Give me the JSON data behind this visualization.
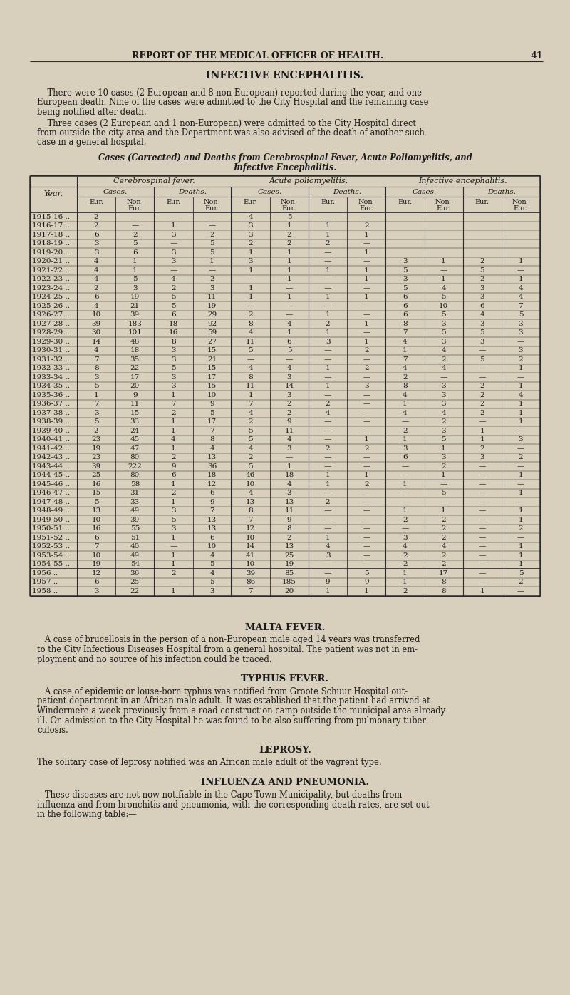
{
  "page_header": "REPORT OF THE MEDICAL OFFICER OF HEALTH.",
  "page_number": "41",
  "section_title": "INFECTIVE ENCEPHALITIS.",
  "para1_indent": "    There were 10 cases (2 European and 8 non-European) reported during the year, and one",
  "para1_line2": "European death. Nine of the cases were admitted to the City Hospital and the remaining case",
  "para1_line3": "being notified after death.",
  "para2_indent": "    Three cases (2 European and 1 non-European) were admitted to the City Hospital direct",
  "para2_line2": "from outside the city area and the Department was also advised of the death of another such",
  "para2_line3": "case in a general hospital.",
  "table_caption_line1": "Cases (Corrected) and Deaths from Cerebrospinal Fever, Acute Poliomyelitis, and",
  "table_caption_line2": "Infective Encephalitis.",
  "rows": [
    [
      "1915-16 ..",
      "2",
      "—",
      "—",
      "—",
      "4",
      "5",
      "—",
      "—",
      "",
      "",
      "",
      ""
    ],
    [
      "1916-17 ..",
      "2",
      "—",
      "1",
      "—",
      "3",
      "1",
      "1",
      "2",
      "",
      "",
      "",
      ""
    ],
    [
      "1917-18 ..",
      "6",
      "2",
      "3",
      "2",
      "3",
      "2",
      "1",
      "1",
      "",
      "",
      "",
      ""
    ],
    [
      "1918-19 ..",
      "3",
      "5",
      "—",
      "5",
      "2",
      "2",
      "2",
      "—",
      "",
      "",
      "",
      ""
    ],
    [
      "1919-20 ..",
      "3",
      "6",
      "3",
      "5",
      "1",
      "1",
      "—",
      "1",
      "",
      "",
      "",
      ""
    ],
    [
      "1920-21 ..",
      "4",
      "1",
      "3",
      "1",
      "3",
      "1",
      "—",
      "—",
      "3",
      "1",
      "2",
      "1"
    ],
    [
      "1921-22 ..",
      "4",
      "1",
      "—",
      "—",
      "1",
      "1",
      "1",
      "1",
      "5",
      "—",
      "5",
      "—"
    ],
    [
      "1922-23 ..",
      "4",
      "5",
      "4",
      "2",
      "—",
      "1",
      "—",
      "1",
      "3",
      "1",
      "2",
      "1"
    ],
    [
      "1923-24 ..",
      "2",
      "3",
      "2",
      "3",
      "1",
      "—",
      "—",
      "—",
      "5",
      "4",
      "3",
      "4"
    ],
    [
      "1924-25 ..",
      "6",
      "19",
      "5",
      "11",
      "1",
      "1",
      "1",
      "1",
      "6",
      "5",
      "3",
      "4"
    ],
    [
      "1925-26 ..",
      "4",
      "21",
      "5",
      "19",
      "—",
      "—",
      "—",
      "—",
      "6",
      "10",
      "6",
      "7"
    ],
    [
      "1926-27 ..",
      "10",
      "39",
      "6",
      "29",
      "2",
      "—",
      "1",
      "—",
      "6",
      "5",
      "4",
      "5"
    ],
    [
      "1927-28 ..",
      "39",
      "183",
      "18",
      "92",
      "8",
      "4",
      "2",
      "1",
      "8",
      "3",
      "3",
      "3"
    ],
    [
      "1928-29 ..",
      "30",
      "101",
      "16",
      "59",
      "4",
      "1",
      "1",
      "—",
      "7",
      "5",
      "5",
      "3"
    ],
    [
      "1929-30 ..",
      "14",
      "48",
      "8",
      "27",
      "11",
      "6",
      "3",
      "1",
      "4",
      "3",
      "3",
      "—"
    ],
    [
      "1930-31 ..",
      "4",
      "18",
      "3",
      "15",
      "5",
      "5",
      "—",
      "2",
      "1",
      "4",
      "—",
      "3"
    ],
    [
      "1931-32 ..",
      "7",
      "35",
      "3",
      "21",
      "—",
      "—",
      "—",
      "—",
      "7",
      "2",
      "5",
      "2"
    ],
    [
      "1932-33 ..",
      "8",
      "22",
      "5",
      "15",
      "4",
      "4",
      "1",
      "2",
      "4",
      "4",
      "—",
      "1"
    ],
    [
      "1933-34 ..",
      "3",
      "17",
      "3",
      "17",
      "8",
      "3",
      "—",
      "—",
      "2",
      "—",
      "—",
      "—"
    ],
    [
      "1934-35 ..",
      "5",
      "20",
      "3",
      "15",
      "11",
      "14",
      "1",
      "3",
      "8",
      "3",
      "2",
      "1"
    ],
    [
      "1935-36 ..",
      "1",
      "9",
      "1",
      "10",
      "1",
      "3",
      "—",
      "—",
      "4",
      "3",
      "2",
      "4"
    ],
    [
      "1936-37 ..",
      "7",
      "11",
      "7",
      "9",
      "7",
      "2",
      "2",
      "—",
      "1",
      "3",
      "2",
      "1"
    ],
    [
      "1937-38 ..",
      "3",
      "15",
      "2",
      "5",
      "4",
      "2",
      "4",
      "—",
      "4",
      "4",
      "2",
      "1"
    ],
    [
      "1938-39 ..",
      "5",
      "33",
      "1",
      "17",
      "2",
      "9",
      "—",
      "—",
      "—",
      "2",
      "—",
      "1"
    ],
    [
      "1939-40 ..",
      "2",
      "24",
      "1",
      "7",
      "5",
      "11",
      "—",
      "—",
      "2",
      "3",
      "1",
      "—"
    ],
    [
      "1940-41 ..",
      "23",
      "45",
      "4",
      "8",
      "5",
      "4",
      "—",
      "1",
      "1",
      "5",
      "1",
      "3"
    ],
    [
      "1941-42 ..",
      "19",
      "47",
      "1",
      "4",
      "4",
      "3",
      "2",
      "2",
      "3",
      "1",
      "2",
      "—"
    ],
    [
      "1942-43 ..",
      "23",
      "80",
      "2",
      "13",
      "2",
      "—",
      "—",
      "—",
      "6",
      "3",
      "3",
      "2"
    ],
    [
      "1943-44 ..",
      "39",
      "222",
      "9",
      "36",
      "5",
      "1",
      "—",
      "—",
      "—",
      "2",
      "—",
      "—"
    ],
    [
      "1944-45 ..",
      "25",
      "80",
      "6",
      "18",
      "46",
      "18",
      "1",
      "1",
      "—",
      "1",
      "—",
      "1"
    ],
    [
      "1945-46 ..",
      "16",
      "58",
      "1",
      "12",
      "10",
      "4",
      "1",
      "2",
      "1",
      "—",
      "—",
      "—"
    ],
    [
      "1946-47 ..",
      "15",
      "31",
      "2",
      "6",
      "4",
      "3",
      "—",
      "—",
      "—",
      "5",
      "—",
      "1"
    ],
    [
      "1947-48 ..",
      "5",
      "33",
      "1",
      "9",
      "13",
      "13",
      "2",
      "—",
      "—",
      "—",
      "—",
      "—"
    ],
    [
      "1948-49 ..",
      "13",
      "49",
      "3",
      "7",
      "8",
      "11",
      "—",
      "—",
      "1",
      "1",
      "—",
      "1"
    ],
    [
      "1949-50 ..",
      "10",
      "39",
      "5",
      "13",
      "7",
      "9",
      "—",
      "—",
      "2",
      "2",
      "—",
      "1"
    ],
    [
      "1950-51 ..",
      "16",
      "55",
      "3",
      "13",
      "12",
      "8",
      "—",
      "—",
      "—",
      "2",
      "—",
      "2"
    ],
    [
      "1951-52 ..",
      "6",
      "51",
      "1",
      "6",
      "10",
      "2",
      "1",
      "—",
      "3",
      "2",
      "—",
      "—"
    ],
    [
      "1952-53 ..",
      "7",
      "40",
      "—",
      "10",
      "14",
      "13",
      "4",
      "—",
      "4",
      "4",
      "—",
      "1"
    ],
    [
      "1953-54 ..",
      "10",
      "49",
      "1",
      "4",
      "41",
      "25",
      "3",
      "—",
      "2",
      "2",
      "—",
      "1"
    ],
    [
      "1954-55 ..",
      "19",
      "54",
      "1",
      "5",
      "10",
      "19",
      "—",
      "—",
      "2",
      "2",
      "—",
      "1"
    ],
    [
      "1956 ..",
      "12",
      "36",
      "2",
      "4",
      "39",
      "85",
      "—",
      "5",
      "1",
      "17",
      "—",
      "5"
    ],
    [
      "1957 ..",
      "6",
      "25",
      "—",
      "5",
      "86",
      "185",
      "9",
      "9",
      "1",
      "8",
      "—",
      "2"
    ],
    [
      "1958 ..",
      "3",
      "22",
      "1",
      "3",
      "7",
      "20",
      "1",
      "1",
      "2",
      "8",
      "1",
      "—"
    ]
  ],
  "malta_title": "MALTA FEVER.",
  "malta_para": [
    "   A case of brucellosis in the person of a non-European male aged 14 years was transferred",
    "to the City Infectious Diseases Hospital from a general hospital. The patient was not in em-",
    "ployment and no source of his infection could be traced."
  ],
  "typhus_title": "TYPHUS FEVER.",
  "typhus_para": [
    "   A case of epidemic or louse-born typhus was notified from Groote Schuur Hospital out-",
    "patient department in an African male adult. It was established that the patient had arrived at",
    "Windermere a week previously from a road construction camp outside the municipal area already",
    "ill. On admission to the City Hospital he was found to be also suffering from pulmonary tuber-",
    "culosis."
  ],
  "leprosy_title": "LEPROSY.",
  "leprosy_para": "The solitary case of leprosy notified was an African male adult of the vagrent type.",
  "influenza_title": "INFLUENZA AND PNEUMONIA.",
  "influenza_para": [
    "   These diseases are not now notifiable in the Cape Town Municipality, but deaths from",
    "influenza and from bronchitis and pneumonia, with the corresponding death rates, are set out",
    "in the following table:—"
  ],
  "bg_color": "#d8d0bc",
  "line_color": "#2a2a2a"
}
